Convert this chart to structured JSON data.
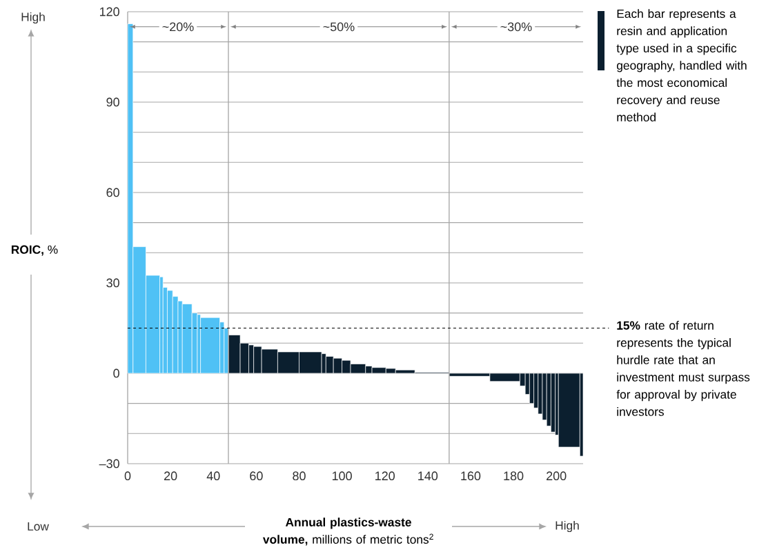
{
  "chart_data": {
    "type": "histogram",
    "bins": [
      0,
      2.5,
      8.5,
      15,
      16.5,
      18.5,
      21,
      23.5,
      25.5,
      30,
      32.5,
      34,
      43,
      45,
      47,
      52.5,
      56.5,
      58.8,
      62.5,
      70,
      80,
      90.5,
      92.5,
      96,
      100,
      104,
      111,
      114,
      120.5,
      125,
      134,
      150,
      169,
      183,
      185.5,
      187.5,
      189.5,
      191.5,
      193.5,
      195.5,
      197.5,
      199.5,
      201,
      211,
      212.5
    ],
    "values": [
      116,
      42,
      32.5,
      32,
      28.5,
      27.5,
      25.5,
      24,
      23,
      20,
      19.5,
      18.5,
      17,
      15,
      12.7,
      10,
      9.4,
      8.9,
      8,
      7.1,
      7.1,
      6.5,
      5.6,
      5,
      4.3,
      3.1,
      2.4,
      1.9,
      1.6,
      1.1,
      0.3,
      -1,
      -2.7,
      -4.2,
      -7,
      -10,
      -11.5,
      -13.5,
      -15.5,
      -17.5,
      -19.5,
      -20.5,
      -24.5,
      -27.5
    ],
    "colors": [
      "#4fc1f5",
      "#4fc1f5",
      "#4fc1f5",
      "#4fc1f5",
      "#4fc1f5",
      "#4fc1f5",
      "#4fc1f5",
      "#4fc1f5",
      "#4fc1f5",
      "#4fc1f5",
      "#4fc1f5",
      "#4fc1f5",
      "#4fc1f5",
      "#4fc1f5",
      "#0b1f2f",
      "#0b1f2f",
      "#0b1f2f",
      "#0b1f2f",
      "#0b1f2f",
      "#0b1f2f",
      "#0b1f2f",
      "#0b1f2f",
      "#0b1f2f",
      "#0b1f2f",
      "#0b1f2f",
      "#0b1f2f",
      "#0b1f2f",
      "#0b1f2f",
      "#0b1f2f",
      "#0b1f2f",
      "#0b1f2f",
      "#0b1f2f",
      "#0b1f2f",
      "#0b1f2f",
      "#0b1f2f",
      "#0b1f2f",
      "#0b1f2f",
      "#0b1f2f",
      "#0b1f2f",
      "#0b1f2f",
      "#0b1f2f",
      "#0b1f2f",
      "#0b1f2f",
      "#0b1f2f"
    ],
    "xlim": [
      0,
      212.5
    ],
    "ylim": [
      -30,
      120
    ],
    "xticks": [
      0,
      20,
      40,
      60,
      80,
      100,
      120,
      140,
      160,
      180,
      200
    ],
    "yticks": [
      {
        "value": -30,
        "label": "–30"
      },
      {
        "value": -20,
        "label": null
      },
      {
        "value": -10,
        "label": null
      },
      0,
      {
        "value": 10,
        "label": null
      },
      {
        "value": 20,
        "label": null
      },
      30,
      {
        "value": 40,
        "label": null
      },
      {
        "value": 50,
        "label": null
      },
      60,
      {
        "value": 70,
        "label": null
      },
      {
        "value": 80,
        "label": null
      },
      90,
      {
        "value": 100,
        "label": null
      },
      {
        "value": 110,
        "label": null
      },
      120
    ],
    "grid": "y",
    "xlabel": "**Annual plastics-waste volume,** millions of metric tons$^{2}$",
    "ylabel": "**ROIC,** %",
    "ref_lines": [
      {
        "axis": "x",
        "value": 47,
        "color": "#a6a6a6"
      },
      {
        "axis": "x",
        "value": 150,
        "color": "#a6a6a6"
      },
      {
        "axis": "y",
        "value": 15,
        "label": "**15%** rate of return represents the typical hurdle rate that an investment must surpass for approval by private investors",
        "color": "#000000",
        "line_style": "dashed"
      }
    ],
    "annotations": [
      "~20%",
      "~50%",
      "~30%",
      "High",
      "Low",
      "High",
      "Each bar represents a resin and application type used in a specific geography, handled with the most economical recovery and reuse method"
    ]
  }
}
